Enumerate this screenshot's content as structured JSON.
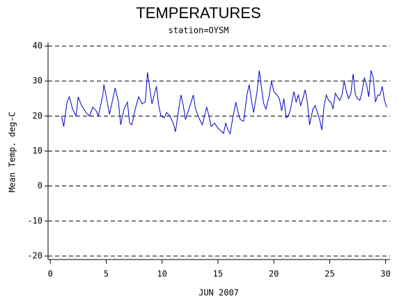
{
  "chart_data": {
    "type": "line",
    "title": "TEMPERATURES",
    "subtitle": "station=OYSM",
    "y_label": "Mean Temp. deg-C",
    "x_label": "JUN 2007",
    "color": "#0000cc",
    "grid": true,
    "xlim": [
      -0.2,
      30.4
    ],
    "xticks": [
      0,
      5,
      10,
      15,
      20,
      25,
      30
    ],
    "ylim": [
      -21,
      41
    ],
    "yticks": [
      -20,
      -10,
      0,
      10,
      20,
      30,
      40
    ],
    "x": [
      1,
      1.2,
      1.5,
      1.7,
      2,
      2.3,
      2.5,
      2.8,
      3.2,
      3.5,
      3.8,
      4.1,
      4.3,
      4.7,
      4.8,
      5.1,
      5.3,
      5.6,
      5.8,
      6.1,
      6.3,
      6.6,
      6.9,
      7.1,
      7.3,
      7.6,
      7.9,
      8.2,
      8.5,
      8.7,
      8.9,
      9.1,
      9.3,
      9.5,
      9.7,
      9.9,
      10.2,
      10.4,
      10.7,
      11,
      11.2,
      11.5,
      11.7,
      11.9,
      12.1,
      12.3,
      12.6,
      12.8,
      13,
      13.3,
      13.6,
      13.8,
      14,
      14.2,
      14.4,
      14.7,
      15,
      15.2,
      15.5,
      15.7,
      15.9,
      16.1,
      16.3,
      16.6,
      16.8,
      17,
      17.3,
      17.6,
      17.8,
      18,
      18.2,
      18.5,
      18.7,
      18.9,
      19.1,
      19.3,
      19.6,
      19.8,
      20,
      20.3,
      20.5,
      20.7,
      20.9,
      21.1,
      21.3,
      21.5,
      21.8,
      22,
      22.2,
      22.4,
      22.6,
      22.8,
      23,
      23.2,
      23.5,
      23.7,
      23.9,
      24.1,
      24.3,
      24.5,
      24.7,
      24.9,
      25.1,
      25.3,
      25.5,
      25.7,
      25.9,
      26.1,
      26.3,
      26.5,
      26.7,
      26.9,
      27.1,
      27.3,
      27.5,
      27.7,
      27.9,
      28.1,
      28.3,
      28.5,
      28.7,
      28.9,
      29.1,
      29.3,
      29.5,
      29.7,
      29.9,
      30.1
    ],
    "values": [
      20,
      17,
      24,
      25.5,
      22,
      20,
      25.5,
      23,
      21,
      20,
      22.5,
      21.5,
      20,
      26,
      29,
      24,
      20.5,
      25,
      28,
      24,
      17.5,
      22,
      24,
      18,
      17.5,
      22,
      25.5,
      23.5,
      24,
      32.5,
      28,
      23.5,
      26,
      28.5,
      23,
      20,
      19.5,
      21,
      20,
      18,
      15.5,
      22,
      26,
      23,
      19,
      21,
      24,
      26,
      22,
      19.5,
      17.5,
      20,
      22.5,
      20,
      17,
      18,
      16.5,
      16,
      15,
      18,
      16,
      15,
      19,
      24,
      21,
      19,
      18.5,
      26,
      29,
      24.5,
      21,
      27,
      33,
      28,
      23.5,
      22,
      26,
      30,
      27,
      26,
      25,
      21.5,
      25,
      19.5,
      20,
      22,
      27,
      24,
      26,
      23,
      25,
      27.5,
      24,
      17.5,
      22,
      23,
      21,
      19,
      16,
      23,
      26,
      24.5,
      24,
      22,
      26.5,
      25.5,
      24.5,
      26,
      30,
      27,
      25,
      26.5,
      32,
      26,
      25,
      24.5,
      27,
      31,
      29,
      25.5,
      33,
      31,
      24,
      26,
      26,
      28.5,
      24.5,
      22.5
    ]
  }
}
